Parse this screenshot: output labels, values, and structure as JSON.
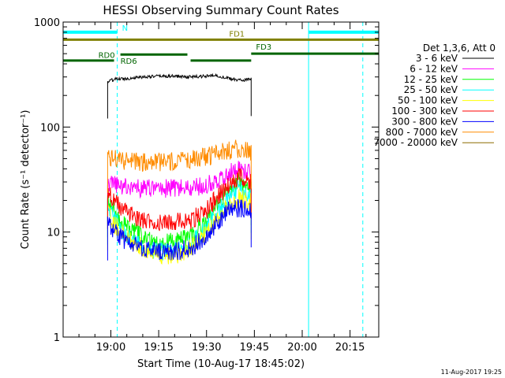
{
  "chart_data": {
    "type": "line",
    "title": "HESSI Observing Summary Count Rates",
    "xlabel": "Start Time (10-Aug-17 18:45:02)",
    "ylabel": "Count Rate (s⁻¹ detector⁻¹)",
    "y_scale": "log",
    "ylim": [
      1,
      1000
    ],
    "xlim": [
      "18:45:02",
      "20:24"
    ],
    "x_ticks": [
      "19:00",
      "19:15",
      "19:30",
      "19:45",
      "20:00",
      "20:15"
    ],
    "y_ticks": [
      "1",
      "10",
      "100",
      "1000"
    ],
    "grid": false,
    "legend_title": "Det 1,3,6, Att 0",
    "legend_position": "right",
    "series": [
      {
        "name": "3 - 6 keV",
        "color": "#000000",
        "x": [
          "18:59",
          "19:01",
          "19:05",
          "19:10",
          "19:15",
          "19:20",
          "19:25",
          "19:30",
          "19:33",
          "19:37",
          "19:40",
          "19:44"
        ],
        "values": [
          270,
          285,
          290,
          300,
          305,
          305,
          300,
          305,
          310,
          290,
          280,
          285
        ]
      },
      {
        "name": "6 - 12 keV",
        "color": "#ff00ff",
        "x": [
          "18:59",
          "19:01",
          "19:05",
          "19:10",
          "19:15",
          "19:20",
          "19:25",
          "19:30",
          "19:33",
          "19:37",
          "19:40",
          "19:44"
        ],
        "values": [
          28,
          28,
          27,
          26,
          26,
          26,
          26,
          28,
          31,
          36,
          40,
          37
        ]
      },
      {
        "name": "12 - 25 keV",
        "color": "#00ff00",
        "x": [
          "18:59",
          "19:01",
          "19:05",
          "19:10",
          "19:15",
          "19:20",
          "19:25",
          "19:30",
          "19:33",
          "19:37",
          "19:40",
          "19:44"
        ],
        "values": [
          20,
          16,
          11,
          9,
          8,
          8,
          9,
          13,
          18,
          25,
          30,
          26
        ]
      },
      {
        "name": "25 - 50 keV",
        "color": "#00ffff",
        "x": [
          "18:59",
          "19:01",
          "19:05",
          "19:10",
          "19:15",
          "19:20",
          "19:25",
          "19:30",
          "19:33",
          "19:37",
          "19:40",
          "19:44"
        ],
        "values": [
          17,
          13,
          9,
          7,
          6.5,
          6.5,
          7.5,
          11,
          15,
          21,
          26,
          22
        ]
      },
      {
        "name": "50 - 100 keV",
        "color": "#ffff00",
        "x": [
          "18:59",
          "19:01",
          "19:05",
          "19:10",
          "19:15",
          "19:20",
          "19:25",
          "19:30",
          "19:33",
          "19:37",
          "19:40",
          "19:44"
        ],
        "values": [
          15,
          12,
          9,
          7,
          6,
          6,
          7,
          10,
          13,
          18,
          21,
          19
        ]
      },
      {
        "name": "100 - 300 keV",
        "color": "#ff0000",
        "x": [
          "18:59",
          "19:01",
          "19:05",
          "19:10",
          "19:15",
          "19:20",
          "19:25",
          "19:30",
          "19:33",
          "19:37",
          "19:40",
          "19:44"
        ],
        "values": [
          24,
          20,
          15,
          13,
          12.5,
          12.5,
          13,
          16,
          21,
          28,
          33,
          30
        ]
      },
      {
        "name": "300 - 800 keV",
        "color": "#0000ff",
        "x": [
          "18:59",
          "19:01",
          "19:05",
          "19:10",
          "19:15",
          "19:20",
          "19:25",
          "19:30",
          "19:33",
          "19:37",
          "19:40",
          "19:44"
        ],
        "values": [
          12,
          10,
          8,
          7,
          6.5,
          6.5,
          7,
          9,
          12,
          16,
          17,
          16
        ]
      },
      {
        "name": "800 - 7000 keV",
        "color": "#ff8c00",
        "x": [
          "18:59",
          "19:01",
          "19:05",
          "19:10",
          "19:15",
          "19:20",
          "19:25",
          "19:30",
          "19:33",
          "19:37",
          "19:40",
          "19:44"
        ],
        "values": [
          53,
          50,
          47,
          46,
          46,
          47,
          49,
          52,
          55,
          60,
          62,
          58
        ]
      },
      {
        "name": "7000 - 20000 keV",
        "color": "#8b6b00",
        "x": [],
        "values": []
      }
    ],
    "flag_bars": [
      {
        "label": "N",
        "color": "#00ffff",
        "level": 800,
        "label_color": "#00ffff",
        "segments": [
          [
            "18:45:02",
            "19:02"
          ],
          [
            "20:02",
            "20:24"
          ]
        ]
      },
      {
        "label": "FD1",
        "color": "#808000",
        "level": 680,
        "label_color": "#808000",
        "segments": [
          [
            "18:45:02",
            "20:24"
          ]
        ]
      },
      {
        "label": "FD3",
        "color": "#006400",
        "level": 500,
        "label_color": "#006400",
        "segments": [
          [
            "19:44",
            "20:24"
          ]
        ]
      },
      {
        "label": "RD0",
        "color": "#006400",
        "level": 490,
        "label_color": "#006400",
        "segments": [
          [
            "19:03",
            "19:24"
          ]
        ]
      },
      {
        "label": "RD6",
        "color": "#006400",
        "level": 430,
        "label_color": "#006400",
        "segments": [
          [
            "18:45:02",
            "19:01"
          ],
          [
            "19:25",
            "19:44"
          ]
        ]
      }
    ],
    "vertical_lines": [
      {
        "time": "18:45:02",
        "color": "#00ffff",
        "style": "solid"
      },
      {
        "time": "19:02",
        "color": "#00ffff",
        "style": "dashed"
      },
      {
        "time": "20:02",
        "color": "#00ffff",
        "style": "solid"
      },
      {
        "time": "20:19",
        "color": "#00ffff",
        "style": "dashed"
      }
    ],
    "footer_timestamp": "11-Aug-2017 19:25"
  }
}
